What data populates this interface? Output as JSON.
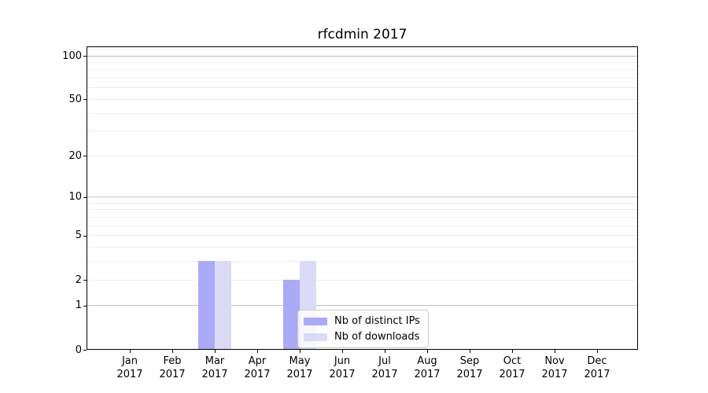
{
  "chart_data": {
    "type": "bar",
    "title": "rfcdmin 2017",
    "categories": [
      "Jan",
      "Feb",
      "Mar",
      "Apr",
      "May",
      "Jun",
      "Jul",
      "Aug",
      "Sep",
      "Oct",
      "Nov",
      "Dec"
    ],
    "x_year_label": "2017",
    "series": [
      {
        "name": "Nb of distinct IPs",
        "color": "#aaaaf7",
        "values": [
          0,
          0,
          3,
          0,
          2,
          0,
          0,
          0,
          0,
          0,
          0,
          0
        ]
      },
      {
        "name": "Nb of downloads",
        "color": "#dbdbf7",
        "values": [
          0,
          0,
          3,
          0,
          3,
          0,
          0,
          0,
          0,
          0,
          0,
          0
        ]
      }
    ],
    "y_scale": "log1p",
    "y_ticks": [
      0,
      1,
      2,
      5,
      10,
      20,
      50,
      100
    ],
    "y_major_gridlines": [
      1,
      10,
      100
    ],
    "y_minor_gridlines": [
      2,
      3,
      4,
      5,
      6,
      7,
      8,
      9,
      20,
      30,
      40,
      50,
      60,
      70,
      80,
      90
    ],
    "ylim": [
      0,
      115
    ],
    "grid": true,
    "legend_position": "lower center",
    "colors": {
      "spine": "#000000",
      "major_grid": "#c2c2c2",
      "minor_grid": "#eeeeee",
      "background": "#ffffff"
    }
  }
}
